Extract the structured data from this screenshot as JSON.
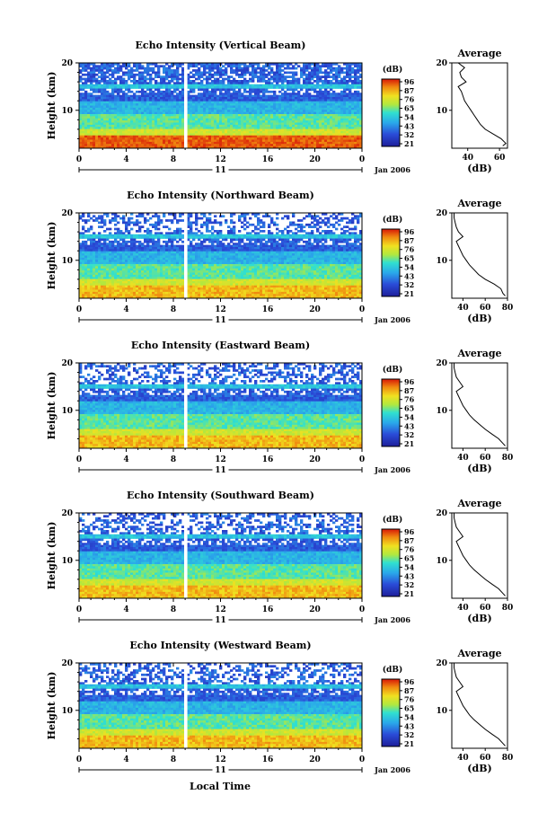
{
  "figure": {
    "bottom_xlabel": "Local Time",
    "colorbar_unit": "(dB)",
    "colorbar_ticks": [
      "96",
      "87",
      "76",
      "65",
      "54",
      "43",
      "32",
      "21"
    ],
    "avg_title": "Average",
    "avg_xlabel": "(dB)",
    "ylabel": "Height (km)",
    "date_label": "Jan 2006",
    "day_label": "11",
    "colors": {
      "low": "#1e1e9a",
      "mid": "#2cc0e0",
      "high": "#e03010",
      "gap": "#ffffff"
    }
  },
  "chart_data": [
    {
      "type": "heatmap",
      "title": "Echo Intensity (Vertical Beam)",
      "x_ticks": [
        "0",
        "4",
        "8",
        "12",
        "16",
        "20",
        "0"
      ],
      "xlim": [
        0,
        24
      ],
      "y_ticks": [
        "20",
        "10"
      ],
      "ylim": [
        2,
        20
      ],
      "colorbar_range": [
        21,
        96
      ],
      "gap_hour": 9.0,
      "avg_profile": {
        "title": "Average",
        "xlabel": "(dB)",
        "x_ticks": [
          "40",
          "60"
        ],
        "xlim": [
          30,
          65
        ],
        "height": [
          2.5,
          3,
          4,
          5,
          6,
          7,
          8,
          9,
          10,
          11,
          12,
          13,
          14,
          15,
          16,
          17,
          18,
          19,
          20
        ],
        "db": [
          62,
          64,
          61,
          56,
          51,
          48,
          46,
          44,
          42,
          40,
          38,
          37,
          36,
          34,
          39,
          36,
          35,
          38,
          34
        ]
      }
    },
    {
      "type": "heatmap",
      "title": "Echo Intensity (Northward Beam)",
      "x_ticks": [
        "0",
        "4",
        "8",
        "12",
        "16",
        "20",
        "0"
      ],
      "xlim": [
        0,
        24
      ],
      "y_ticks": [
        "20",
        "10"
      ],
      "ylim": [
        2,
        20
      ],
      "colorbar_range": [
        21,
        96
      ],
      "gap_hour": 9.0,
      "avg_profile": {
        "title": "Average",
        "xlabel": "(dB)",
        "x_ticks": [
          "40",
          "60",
          "80"
        ],
        "xlim": [
          30,
          80
        ],
        "height": [
          2.5,
          3,
          4,
          5,
          6,
          7,
          8,
          9,
          10,
          11,
          12,
          13,
          14,
          15,
          16,
          17,
          18,
          19,
          20
        ],
        "db": [
          78,
          76,
          74,
          68,
          60,
          54,
          50,
          46,
          43,
          40,
          38,
          36,
          34,
          40,
          36,
          34,
          33,
          32,
          32
        ]
      }
    },
    {
      "type": "heatmap",
      "title": "Echo Intensity (Eastward Beam)",
      "x_ticks": [
        "0",
        "4",
        "8",
        "12",
        "16",
        "20",
        "0"
      ],
      "xlim": [
        0,
        24
      ],
      "y_ticks": [
        "20",
        "10"
      ],
      "ylim": [
        2,
        20
      ],
      "colorbar_range": [
        21,
        96
      ],
      "gap_hour": 9.0,
      "avg_profile": {
        "title": "Average",
        "xlabel": "(dB)",
        "x_ticks": [
          "40",
          "60",
          "80"
        ],
        "xlim": [
          30,
          80
        ],
        "height": [
          2.5,
          3,
          4,
          5,
          6,
          7,
          8,
          9,
          10,
          11,
          12,
          13,
          14,
          15,
          16,
          17,
          18,
          19,
          20
        ],
        "db": [
          78,
          76,
          72,
          66,
          60,
          55,
          50,
          46,
          43,
          40,
          38,
          36,
          34,
          40,
          37,
          34,
          33,
          32,
          32
        ]
      }
    },
    {
      "type": "heatmap",
      "title": "Echo Intensity (Southward Beam)",
      "x_ticks": [
        "0",
        "4",
        "8",
        "12",
        "16",
        "20",
        "0"
      ],
      "xlim": [
        0,
        24
      ],
      "y_ticks": [
        "20",
        "10"
      ],
      "ylim": [
        2,
        20
      ],
      "colorbar_range": [
        21,
        96
      ],
      "gap_hour": 9.0,
      "avg_profile": {
        "title": "Average",
        "xlabel": "(dB)",
        "x_ticks": [
          "40",
          "60",
          "80"
        ],
        "xlim": [
          30,
          80
        ],
        "height": [
          2.5,
          3,
          4,
          5,
          6,
          7,
          8,
          9,
          10,
          11,
          12,
          13,
          14,
          15,
          16,
          17,
          18,
          19,
          20
        ],
        "db": [
          78,
          76,
          72,
          66,
          60,
          55,
          50,
          46,
          43,
          40,
          38,
          36,
          34,
          40,
          37,
          34,
          33,
          32,
          32
        ]
      }
    },
    {
      "type": "heatmap",
      "title": "Echo Intensity (Westward Beam)",
      "x_ticks": [
        "0",
        "4",
        "8",
        "12",
        "16",
        "20",
        "0"
      ],
      "xlim": [
        0,
        24
      ],
      "y_ticks": [
        "20",
        "10"
      ],
      "ylim": [
        2,
        20
      ],
      "colorbar_range": [
        21,
        96
      ],
      "gap_hour": 9.0,
      "avg_profile": {
        "title": "Average",
        "xlabel": "(dB)",
        "x_ticks": [
          "40",
          "60",
          "80"
        ],
        "xlim": [
          30,
          80
        ],
        "height": [
          2.5,
          3,
          4,
          5,
          6,
          7,
          8,
          9,
          10,
          11,
          12,
          13,
          14,
          15,
          16,
          17,
          18,
          19,
          20
        ],
        "db": [
          78,
          76,
          72,
          66,
          60,
          55,
          50,
          46,
          43,
          40,
          38,
          36,
          34,
          40,
          37,
          34,
          33,
          32,
          32
        ]
      }
    }
  ]
}
